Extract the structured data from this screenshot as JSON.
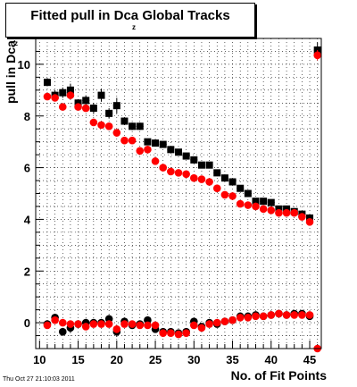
{
  "chart_data": {
    "type": "scatter",
    "title": "Fitted pull in Dca",
    "title_subscript": "z",
    "title_suffix": "Global Tracks",
    "ylabel": "pull in Dca",
    "ylabel_subscript": "z",
    "xlabel": "No. of Fit Points",
    "xlim": [
      9.5,
      46.5
    ],
    "ylim": [
      -1.0,
      11.0
    ],
    "x_ticks": [
      10,
      15,
      20,
      25,
      30,
      35,
      40,
      45
    ],
    "y_ticks": [
      0,
      2,
      4,
      6,
      8,
      10
    ],
    "grid": true,
    "legend": "none",
    "series": [
      {
        "color": "#000000",
        "marker": "square",
        "x": [
          11,
          12,
          13,
          14,
          15,
          16,
          17,
          18,
          19,
          20,
          21,
          22,
          23,
          24,
          25,
          26,
          27,
          28,
          29,
          30,
          31,
          32,
          33,
          34,
          35,
          36,
          37,
          38,
          39,
          40,
          41,
          42,
          43,
          44,
          45,
          46
        ],
        "y": [
          9.3,
          8.8,
          8.9,
          9.0,
          8.5,
          8.6,
          8.3,
          8.8,
          8.1,
          8.4,
          7.8,
          7.6,
          7.6,
          7.0,
          6.95,
          6.9,
          6.7,
          6.6,
          6.45,
          6.3,
          6.1,
          6.1,
          5.8,
          5.6,
          5.45,
          5.2,
          5.0,
          4.7,
          4.7,
          4.65,
          4.4,
          4.4,
          4.3,
          4.2,
          4.05,
          10.55
        ],
        "err": [
          0.15,
          0.2,
          0.2,
          0.25,
          0.15,
          0.2,
          0.2,
          0.25,
          0.2,
          0.3,
          0.15,
          0.15,
          0.15,
          0.1,
          0.1,
          0.1,
          0.1,
          0.1,
          0.1,
          0.1,
          0.1,
          0.1,
          0.1,
          0.1,
          0.1,
          0.1,
          0.1,
          0.1,
          0.1,
          0.1,
          0.1,
          0.1,
          0.1,
          0.1,
          0.12,
          0.3
        ]
      },
      {
        "color": "#ff0000",
        "marker": "circle",
        "x": [
          11,
          12,
          13,
          14,
          15,
          16,
          17,
          18,
          19,
          20,
          21,
          22,
          23,
          24,
          25,
          26,
          27,
          28,
          29,
          30,
          31,
          32,
          33,
          34,
          35,
          36,
          37,
          38,
          39,
          40,
          41,
          42,
          43,
          44,
          45,
          46
        ],
        "y": [
          8.75,
          8.7,
          8.35,
          8.8,
          8.35,
          8.3,
          7.75,
          7.65,
          7.6,
          7.35,
          7.05,
          7.05,
          6.65,
          6.7,
          6.25,
          6.0,
          5.85,
          5.8,
          5.75,
          5.6,
          5.55,
          5.45,
          5.2,
          4.95,
          4.9,
          4.6,
          4.55,
          4.5,
          4.4,
          4.35,
          4.25,
          4.25,
          4.25,
          4.1,
          3.9,
          10.35
        ],
        "err": [
          0.1,
          0.1,
          0.12,
          0.15,
          0.1,
          0.12,
          0.1,
          0.12,
          0.1,
          0.15,
          0.1,
          0.1,
          0.08,
          0.08,
          0.08,
          0.06,
          0.06,
          0.06,
          0.06,
          0.06,
          0.06,
          0.06,
          0.06,
          0.06,
          0.06,
          0.06,
          0.06,
          0.06,
          0.06,
          0.06,
          0.06,
          0.06,
          0.06,
          0.06,
          0.08,
          0.2
        ]
      },
      {
        "color": "#000000",
        "marker": "circle",
        "x": [
          11,
          12,
          13,
          14,
          15,
          16,
          17,
          18,
          19,
          20,
          21,
          22,
          23,
          24,
          25,
          26,
          27,
          28,
          29,
          30,
          31,
          32,
          33,
          34,
          35,
          36,
          37,
          38,
          39,
          40,
          41,
          42,
          43,
          44,
          45
        ],
        "y": [
          -0.05,
          0.2,
          -0.35,
          -0.2,
          -0.05,
          0.0,
          0.0,
          0.0,
          0.15,
          -0.35,
          0.05,
          -0.1,
          -0.05,
          0.1,
          -0.25,
          -0.35,
          -0.35,
          -0.4,
          -0.35,
          0.05,
          -0.15,
          0.0,
          -0.05,
          0.05,
          0.1,
          0.25,
          0.25,
          0.3,
          0.25,
          0.3,
          0.35,
          0.3,
          0.35,
          0.35,
          0.25
        ],
        "err": [
          0.15,
          0.1,
          0.15,
          0.2,
          0.15,
          0.15,
          0.1,
          0.1,
          0.15,
          0.2,
          0.1,
          0.1,
          0.1,
          0.1,
          0.1,
          0.1,
          0.1,
          0.1,
          0.1,
          0.1,
          0.1,
          0.1,
          0.1,
          0.1,
          0.1,
          0.1,
          0.1,
          0.1,
          0.1,
          0.1,
          0.1,
          0.1,
          0.1,
          0.1,
          0.1
        ]
      },
      {
        "color": "#ff0000",
        "marker": "circle",
        "x": [
          11,
          12,
          13,
          14,
          15,
          16,
          17,
          18,
          19,
          20,
          21,
          22,
          23,
          24,
          25,
          26,
          27,
          28,
          29,
          30,
          31,
          32,
          33,
          34,
          35,
          36,
          37,
          38,
          39,
          40,
          41,
          42,
          43,
          44,
          45,
          46
        ],
        "y": [
          -0.1,
          0.1,
          0.0,
          -0.05,
          -0.05,
          -0.15,
          -0.05,
          -0.05,
          -0.05,
          -0.25,
          -0.05,
          -0.05,
          -0.1,
          -0.1,
          -0.1,
          -0.4,
          -0.4,
          -0.45,
          -0.4,
          -0.1,
          -0.2,
          -0.05,
          0.0,
          0.05,
          0.1,
          0.2,
          0.2,
          0.25,
          0.25,
          0.3,
          0.35,
          0.3,
          0.3,
          0.3,
          0.3,
          -1.0
        ],
        "err": [
          0.1,
          0.1,
          0.1,
          0.1,
          0.1,
          0.1,
          0.1,
          0.1,
          0.1,
          0.15,
          0.1,
          0.1,
          0.1,
          0.1,
          0.1,
          0.1,
          0.1,
          0.1,
          0.1,
          0.1,
          0.1,
          0.1,
          0.1,
          0.1,
          0.1,
          0.1,
          0.1,
          0.1,
          0.1,
          0.1,
          0.1,
          0.1,
          0.1,
          0.1,
          0.1,
          0.1
        ]
      }
    ]
  },
  "datestamp": "Thu Oct 27 21:10:03 2011"
}
